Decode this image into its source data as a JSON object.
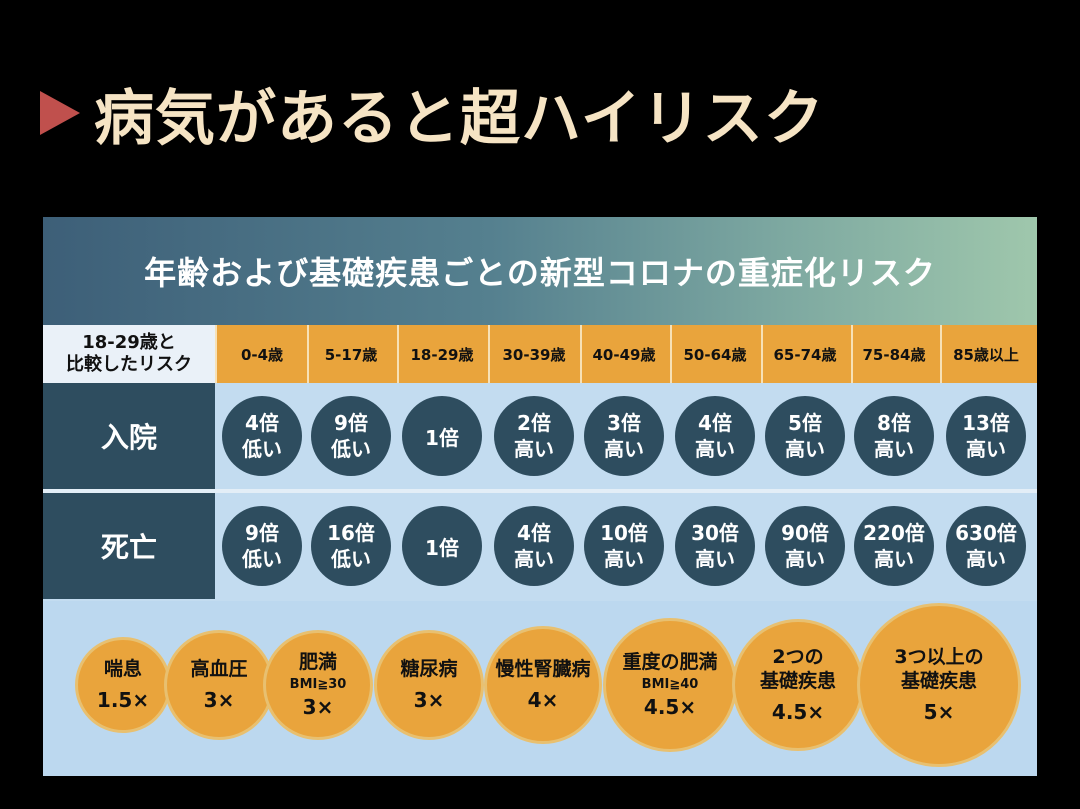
{
  "slide": {
    "title": "病気があると超ハイリスク"
  },
  "panel": {
    "title": "年齢および基礎疾患ごとの新型コロナの重症化リスク",
    "corner_label": "18-29歳と\n比較したリスク",
    "age_groups": [
      "0-4歳",
      "5-17歳",
      "18-29歳",
      "30-39歳",
      "40-49歳",
      "50-64歳",
      "65-74歳",
      "75-84歳",
      "85歳以上"
    ],
    "rows": [
      {
        "label": "入院",
        "cells": [
          {
            "value": "4倍",
            "level": "低い"
          },
          {
            "value": "9倍",
            "level": "低い"
          },
          {
            "value": "1倍",
            "level": ""
          },
          {
            "value": "2倍",
            "level": "高い"
          },
          {
            "value": "3倍",
            "level": "高い"
          },
          {
            "value": "4倍",
            "level": "高い"
          },
          {
            "value": "5倍",
            "level": "高い"
          },
          {
            "value": "8倍",
            "level": "高い"
          },
          {
            "value": "13倍",
            "level": "高い"
          }
        ]
      },
      {
        "label": "死亡",
        "cells": [
          {
            "value": "9倍",
            "level": "低い"
          },
          {
            "value": "16倍",
            "level": "低い"
          },
          {
            "value": "1倍",
            "level": ""
          },
          {
            "value": "4倍",
            "level": "高い"
          },
          {
            "value": "10倍",
            "level": "高い"
          },
          {
            "value": "30倍",
            "level": "高い"
          },
          {
            "value": "90倍",
            "level": "高い"
          },
          {
            "value": "220倍",
            "level": "高い"
          },
          {
            "value": "630倍",
            "level": "高い"
          }
        ]
      }
    ],
    "conditions": [
      {
        "name": "喘息",
        "sub": "",
        "factor": "1.5×"
      },
      {
        "name": "高血圧",
        "sub": "",
        "factor": "3×"
      },
      {
        "name": "肥満",
        "sub": "BMI≧30",
        "factor": "3×"
      },
      {
        "name": "糖尿病",
        "sub": "",
        "factor": "3×"
      },
      {
        "name": "慢性腎臓病",
        "sub": "",
        "factor": "4×"
      },
      {
        "name": "重度の肥満",
        "sub": "BMI≧40",
        "factor": "4.5×"
      },
      {
        "name": "2つの\n基礎疾患",
        "sub": "",
        "factor": "4.5×"
      },
      {
        "name": "3つ以上の\n基礎疾患",
        "sub": "",
        "factor": "5×"
      }
    ]
  },
  "colors": {
    "title_text": "#f6e4c4",
    "title_marker": "#c0504d",
    "navy": "#2e4d5f",
    "orange": "#e9a43c",
    "light_blue": "#c3dcf0"
  }
}
